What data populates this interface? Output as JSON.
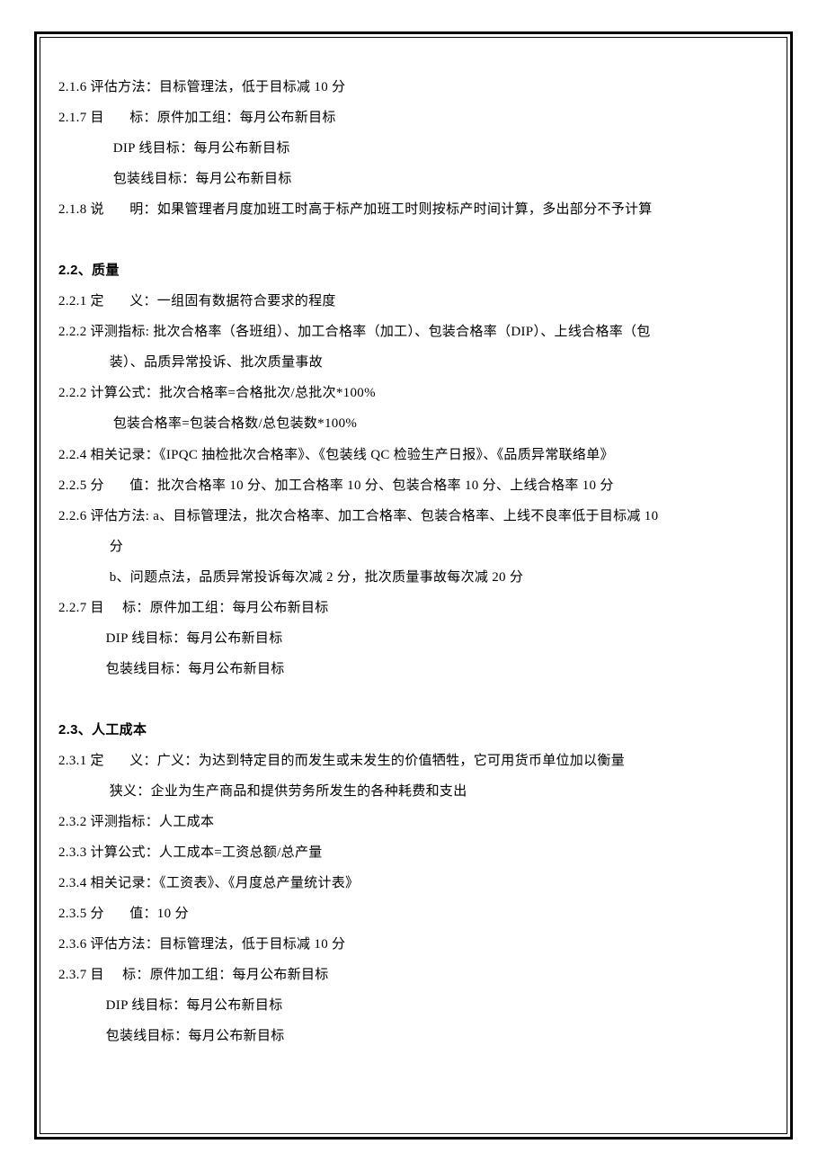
{
  "typography": {
    "body_fontsize": 15,
    "line_height": 2.27,
    "text_color": "#000000",
    "heading_weight": "bold",
    "background_color": "#ffffff",
    "border_color": "#000000",
    "outer_border_width": 3,
    "inner_border_width": 1
  },
  "sections": {
    "s21": {
      "l216": "2.1.6 评估方法：目标管理法，低于目标减 10 分",
      "l217_1": "2.1.7 目       标：原件加工组：每月公布新目标",
      "l217_2": "               DIP 线目标：每月公布新目标",
      "l217_3": "               包装线目标：每月公布新目标",
      "l218": "2.1.8 说       明：如果管理者月度加班工时高于标产加班工时则按标产时间计算，多出部分不予计算"
    },
    "s22": {
      "heading": "2.2、质量",
      "l221": "2.2.1 定       义：一组固有数据符合要求的程度",
      "l222_1": "2.2.2 评测指标: 批次合格率（各班组）、加工合格率（加工）、包装合格率（DIP）、上线合格率（包",
      "l222_2": "              装）、品质异常投诉、批次质量事故",
      "l222b_1": "2.2.2 计算公式：批次合格率=合格批次/总批次*100%",
      "l222b_2": "               包装合格率=包装合格数/总包装数*100%",
      "l224": "2.2.4 相关记录：《IPQC 抽检批次合格率》、《包装线 QC 检验生产日报》、《品质异常联络单》",
      "l225": "2.2.5 分       值：批次合格率 10 分、加工合格率 10 分、包装合格率 10 分、上线合格率 10 分",
      "l226_1": "2.2.6 评估方法: a、目标管理法，批次合格率、加工合格率、包装合格率、上线不良率低于目标减 10",
      "l226_2": "              分",
      "l226_3": "              b、问题点法，品质异常投诉每次减 2 分，批次质量事故每次减 20 分",
      "l227_1": "2.2.7 目     标：原件加工组：每月公布新目标",
      "l227_2": "             DIP 线目标：每月公布新目标",
      "l227_3": "             包装线目标：每月公布新目标"
    },
    "s23": {
      "heading": "2.3、人工成本",
      "l231_1": "2.3.1 定       义：广义：为达到特定目的而发生或未发生的价值牺牲，它可用货币单位加以衡量",
      "l231_2": "              狭义：企业为生产商品和提供劳务所发生的各种耗费和支出",
      "l232": "2.3.2 评测指标：人工成本",
      "l233": "2.3.3 计算公式：人工成本=工资总额/总产量",
      "l234": "2.3.4 相关记录：《工资表》、《月度总产量统计表》",
      "l235": "2.3.5 分       值：10 分",
      "l236": "2.3.6 评估方法：目标管理法，低于目标减 10 分",
      "l237_1": "2.3.7 目     标：原件加工组：每月公布新目标",
      "l237_2": "             DIP 线目标：每月公布新目标",
      "l237_3": "             包装线目标：每月公布新目标"
    }
  }
}
